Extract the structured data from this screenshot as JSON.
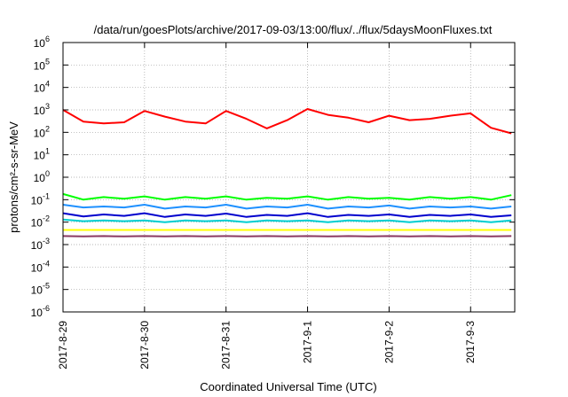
{
  "chart_data": {
    "type": "line",
    "title": "/data/run/goesPlots/archive/2017-09-03/13:00/flux/../flux/5daysMoonFluxes.txt",
    "xlabel": "Coordinated Universal Time (UTC)",
    "ylabel": "protons/cm²-s-sr-MeV",
    "yscale": "log",
    "ylim": [
      1e-06,
      1000000.0
    ],
    "xlim": [
      "2017-08-29",
      "2017-09-03 13:00"
    ],
    "x_ticks": [
      "2017-8-29",
      "2017-8-30",
      "2017-8-31",
      "2017-9-1",
      "2017-9-2",
      "2017-9-3"
    ],
    "y_ticks": [
      {
        "base": "10",
        "exp": "-6"
      },
      {
        "base": "10",
        "exp": "-5"
      },
      {
        "base": "10",
        "exp": "-4"
      },
      {
        "base": "10",
        "exp": "-3"
      },
      {
        "base": "10",
        "exp": "-2"
      },
      {
        "base": "10",
        "exp": "-1"
      },
      {
        "base": "10",
        "exp": "0"
      },
      {
        "base": "10",
        "exp": "1"
      },
      {
        "base": "10",
        "exp": "2"
      },
      {
        "base": "10",
        "exp": "3"
      },
      {
        "base": "10",
        "exp": "4"
      },
      {
        "base": "10",
        "exp": "5"
      },
      {
        "base": "10",
        "exp": "6"
      }
    ],
    "grid": true,
    "x": [
      "2017-08-29 00:00",
      "2017-08-29 06:00",
      "2017-08-29 12:00",
      "2017-08-29 18:00",
      "2017-08-30 00:00",
      "2017-08-30 06:00",
      "2017-08-30 12:00",
      "2017-08-30 18:00",
      "2017-08-31 00:00",
      "2017-08-31 06:00",
      "2017-08-31 12:00",
      "2017-08-31 18:00",
      "2017-09-01 00:00",
      "2017-09-01 06:00",
      "2017-09-01 12:00",
      "2017-09-01 18:00",
      "2017-09-02 00:00",
      "2017-09-02 06:00",
      "2017-09-02 12:00",
      "2017-09-02 18:00",
      "2017-09-03 00:00",
      "2017-09-03 06:00",
      "2017-09-03 12:00"
    ],
    "series": [
      {
        "color": "#ff0000",
        "values": [
          1000,
          300,
          250,
          280,
          900,
          500,
          300,
          250,
          900,
          400,
          150,
          350,
          1100,
          600,
          450,
          280,
          550,
          350,
          400,
          550,
          700,
          160,
          90
        ]
      },
      {
        "color": "#00ff00",
        "values": [
          0.18,
          0.1,
          0.13,
          0.11,
          0.14,
          0.1,
          0.13,
          0.11,
          0.14,
          0.1,
          0.12,
          0.11,
          0.14,
          0.1,
          0.13,
          0.11,
          0.12,
          0.1,
          0.13,
          0.11,
          0.13,
          0.1,
          0.16
        ]
      },
      {
        "color": "#1e90ff",
        "values": [
          0.06,
          0.045,
          0.05,
          0.045,
          0.06,
          0.04,
          0.05,
          0.045,
          0.06,
          0.04,
          0.05,
          0.045,
          0.06,
          0.04,
          0.05,
          0.045,
          0.055,
          0.04,
          0.05,
          0.045,
          0.05,
          0.04,
          0.05
        ]
      },
      {
        "color": "#0000cd",
        "values": [
          0.025,
          0.018,
          0.022,
          0.019,
          0.025,
          0.017,
          0.022,
          0.019,
          0.024,
          0.017,
          0.021,
          0.019,
          0.025,
          0.017,
          0.021,
          0.019,
          0.022,
          0.017,
          0.021,
          0.019,
          0.022,
          0.017,
          0.02
        ]
      },
      {
        "color": "#00ced1",
        "values": [
          0.013,
          0.011,
          0.012,
          0.011,
          0.012,
          0.01,
          0.012,
          0.011,
          0.012,
          0.01,
          0.012,
          0.011,
          0.012,
          0.01,
          0.012,
          0.011,
          0.012,
          0.01,
          0.012,
          0.011,
          0.012,
          0.01,
          0.012
        ]
      },
      {
        "color": "#ffff00",
        "values": [
          0.0045,
          0.0045,
          0.0045,
          0.0045,
          0.0045,
          0.0045,
          0.0045,
          0.0045,
          0.0045,
          0.0045,
          0.0045,
          0.0045,
          0.0045,
          0.0045,
          0.0045,
          0.0045,
          0.0045,
          0.0045,
          0.0045,
          0.0045,
          0.0045,
          0.0045,
          0.0045
        ]
      },
      {
        "color": "#8b3a62",
        "values": [
          0.0024,
          0.0023,
          0.0024,
          0.0023,
          0.0024,
          0.0023,
          0.0024,
          0.0023,
          0.0024,
          0.0023,
          0.0024,
          0.0023,
          0.0024,
          0.0023,
          0.0024,
          0.0023,
          0.0024,
          0.0023,
          0.0024,
          0.0023,
          0.0024,
          0.0023,
          0.0024
        ]
      }
    ]
  }
}
